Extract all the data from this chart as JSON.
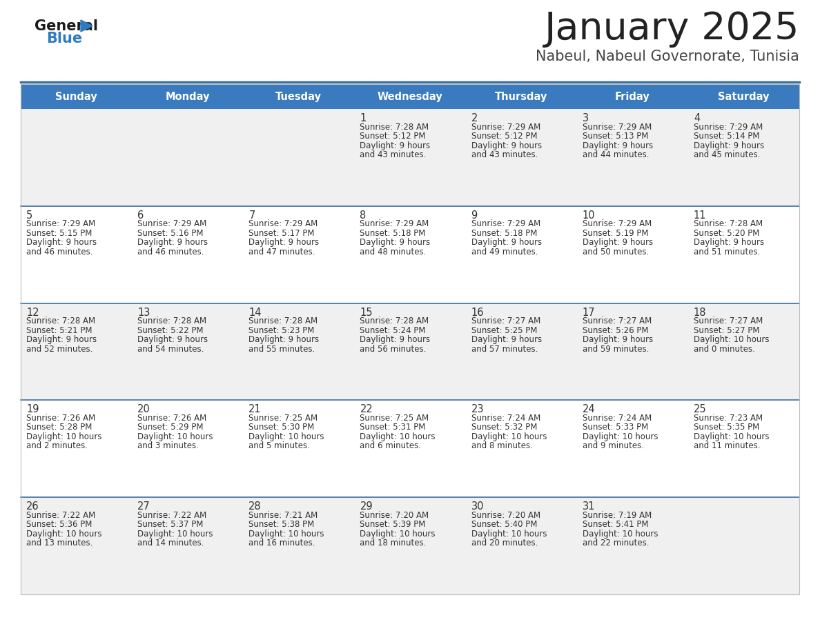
{
  "title": "January 2025",
  "subtitle": "Nabeul, Nabeul Governorate, Tunisia",
  "days_of_week": [
    "Sunday",
    "Monday",
    "Tuesday",
    "Wednesday",
    "Thursday",
    "Friday",
    "Saturday"
  ],
  "header_bg": "#3a7abf",
  "header_text": "#ffffff",
  "row_bg_even": "#f0f0f0",
  "row_bg_odd": "#ffffff",
  "separator_color": "#3a6fa0",
  "text_color": "#333333",
  "title_color": "#222222",
  "subtitle_color": "#444444",
  "calendar_data": [
    [
      null,
      null,
      null,
      {
        "day": 1,
        "sunrise": "7:28 AM",
        "sunset": "5:12 PM",
        "daylight_h": "9 hours",
        "daylight_m": "and 43 minutes."
      },
      {
        "day": 2,
        "sunrise": "7:29 AM",
        "sunset": "5:12 PM",
        "daylight_h": "9 hours",
        "daylight_m": "and 43 minutes."
      },
      {
        "day": 3,
        "sunrise": "7:29 AM",
        "sunset": "5:13 PM",
        "daylight_h": "9 hours",
        "daylight_m": "and 44 minutes."
      },
      {
        "day": 4,
        "sunrise": "7:29 AM",
        "sunset": "5:14 PM",
        "daylight_h": "9 hours",
        "daylight_m": "and 45 minutes."
      }
    ],
    [
      {
        "day": 5,
        "sunrise": "7:29 AM",
        "sunset": "5:15 PM",
        "daylight_h": "9 hours",
        "daylight_m": "and 46 minutes."
      },
      {
        "day": 6,
        "sunrise": "7:29 AM",
        "sunset": "5:16 PM",
        "daylight_h": "9 hours",
        "daylight_m": "and 46 minutes."
      },
      {
        "day": 7,
        "sunrise": "7:29 AM",
        "sunset": "5:17 PM",
        "daylight_h": "9 hours",
        "daylight_m": "and 47 minutes."
      },
      {
        "day": 8,
        "sunrise": "7:29 AM",
        "sunset": "5:18 PM",
        "daylight_h": "9 hours",
        "daylight_m": "and 48 minutes."
      },
      {
        "day": 9,
        "sunrise": "7:29 AM",
        "sunset": "5:18 PM",
        "daylight_h": "9 hours",
        "daylight_m": "and 49 minutes."
      },
      {
        "day": 10,
        "sunrise": "7:29 AM",
        "sunset": "5:19 PM",
        "daylight_h": "9 hours",
        "daylight_m": "and 50 minutes."
      },
      {
        "day": 11,
        "sunrise": "7:28 AM",
        "sunset": "5:20 PM",
        "daylight_h": "9 hours",
        "daylight_m": "and 51 minutes."
      }
    ],
    [
      {
        "day": 12,
        "sunrise": "7:28 AM",
        "sunset": "5:21 PM",
        "daylight_h": "9 hours",
        "daylight_m": "and 52 minutes."
      },
      {
        "day": 13,
        "sunrise": "7:28 AM",
        "sunset": "5:22 PM",
        "daylight_h": "9 hours",
        "daylight_m": "and 54 minutes."
      },
      {
        "day": 14,
        "sunrise": "7:28 AM",
        "sunset": "5:23 PM",
        "daylight_h": "9 hours",
        "daylight_m": "and 55 minutes."
      },
      {
        "day": 15,
        "sunrise": "7:28 AM",
        "sunset": "5:24 PM",
        "daylight_h": "9 hours",
        "daylight_m": "and 56 minutes."
      },
      {
        "day": 16,
        "sunrise": "7:27 AM",
        "sunset": "5:25 PM",
        "daylight_h": "9 hours",
        "daylight_m": "and 57 minutes."
      },
      {
        "day": 17,
        "sunrise": "7:27 AM",
        "sunset": "5:26 PM",
        "daylight_h": "9 hours",
        "daylight_m": "and 59 minutes."
      },
      {
        "day": 18,
        "sunrise": "7:27 AM",
        "sunset": "5:27 PM",
        "daylight_h": "10 hours",
        "daylight_m": "and 0 minutes."
      }
    ],
    [
      {
        "day": 19,
        "sunrise": "7:26 AM",
        "sunset": "5:28 PM",
        "daylight_h": "10 hours",
        "daylight_m": "and 2 minutes."
      },
      {
        "day": 20,
        "sunrise": "7:26 AM",
        "sunset": "5:29 PM",
        "daylight_h": "10 hours",
        "daylight_m": "and 3 minutes."
      },
      {
        "day": 21,
        "sunrise": "7:25 AM",
        "sunset": "5:30 PM",
        "daylight_h": "10 hours",
        "daylight_m": "and 5 minutes."
      },
      {
        "day": 22,
        "sunrise": "7:25 AM",
        "sunset": "5:31 PM",
        "daylight_h": "10 hours",
        "daylight_m": "and 6 minutes."
      },
      {
        "day": 23,
        "sunrise": "7:24 AM",
        "sunset": "5:32 PM",
        "daylight_h": "10 hours",
        "daylight_m": "and 8 minutes."
      },
      {
        "day": 24,
        "sunrise": "7:24 AM",
        "sunset": "5:33 PM",
        "daylight_h": "10 hours",
        "daylight_m": "and 9 minutes."
      },
      {
        "day": 25,
        "sunrise": "7:23 AM",
        "sunset": "5:35 PM",
        "daylight_h": "10 hours",
        "daylight_m": "and 11 minutes."
      }
    ],
    [
      {
        "day": 26,
        "sunrise": "7:22 AM",
        "sunset": "5:36 PM",
        "daylight_h": "10 hours",
        "daylight_m": "and 13 minutes."
      },
      {
        "day": 27,
        "sunrise": "7:22 AM",
        "sunset": "5:37 PM",
        "daylight_h": "10 hours",
        "daylight_m": "and 14 minutes."
      },
      {
        "day": 28,
        "sunrise": "7:21 AM",
        "sunset": "5:38 PM",
        "daylight_h": "10 hours",
        "daylight_m": "and 16 minutes."
      },
      {
        "day": 29,
        "sunrise": "7:20 AM",
        "sunset": "5:39 PM",
        "daylight_h": "10 hours",
        "daylight_m": "and 18 minutes."
      },
      {
        "day": 30,
        "sunrise": "7:20 AM",
        "sunset": "5:40 PM",
        "daylight_h": "10 hours",
        "daylight_m": "and 20 minutes."
      },
      {
        "day": 31,
        "sunrise": "7:19 AM",
        "sunset": "5:41 PM",
        "daylight_h": "10 hours",
        "daylight_m": "and 22 minutes."
      },
      null
    ]
  ],
  "logo_text_general": "General",
  "logo_text_blue": "Blue",
  "fig_width": 11.88,
  "fig_height": 9.18,
  "dpi": 100
}
